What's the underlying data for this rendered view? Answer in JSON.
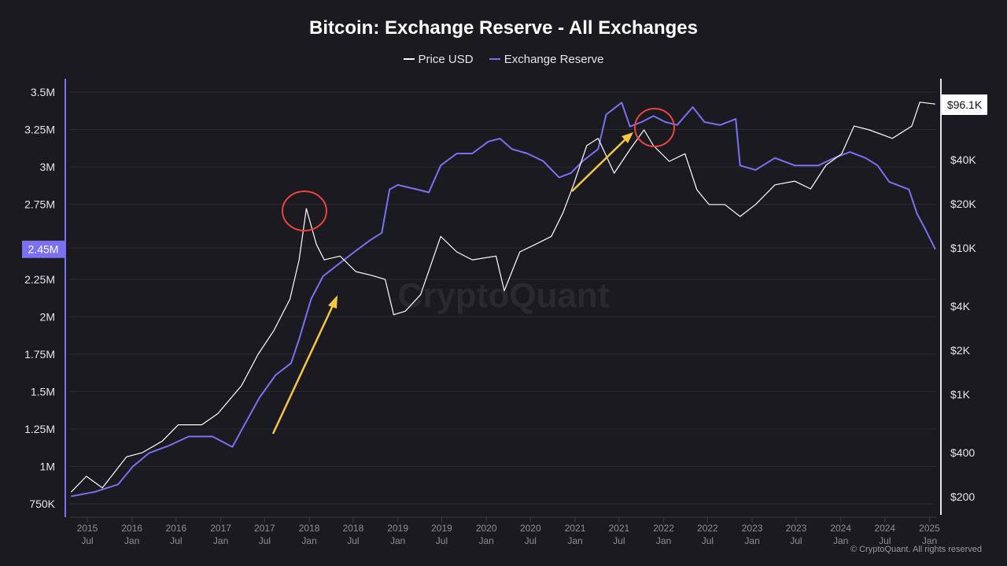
{
  "chart_data": {
    "type": "line",
    "title": "Bitcoin: Exchange Reserve - All Exchanges",
    "legend_position": "top",
    "grid": true,
    "colors": {
      "background": "#1b1a20",
      "price": "#ffffff",
      "reserve": "#7b70f2",
      "annotation_circle": "#e8463c",
      "annotation_arrow": "#f2c744"
    },
    "x_ticks": [
      {
        "year": "2015",
        "half": "Jul",
        "date": "2015-07-01"
      },
      {
        "year": "2016",
        "half": "Jan",
        "date": "2016-01-01"
      },
      {
        "year": "2016",
        "half": "Jul",
        "date": "2016-07-01"
      },
      {
        "year": "2017",
        "half": "Jan",
        "date": "2017-01-01"
      },
      {
        "year": "2017",
        "half": "Jul",
        "date": "2017-07-01"
      },
      {
        "year": "2018",
        "half": "Jan",
        "date": "2018-01-01"
      },
      {
        "year": "2018",
        "half": "Jul",
        "date": "2018-07-01"
      },
      {
        "year": "2019",
        "half": "Jan",
        "date": "2019-01-01"
      },
      {
        "year": "2019",
        "half": "Jul",
        "date": "2019-07-01"
      },
      {
        "year": "2020",
        "half": "Jan",
        "date": "2020-01-01"
      },
      {
        "year": "2020",
        "half": "Jul",
        "date": "2020-07-01"
      },
      {
        "year": "2021",
        "half": "Jan",
        "date": "2021-01-01"
      },
      {
        "year": "2021",
        "half": "Jul",
        "date": "2021-07-01"
      },
      {
        "year": "2022",
        "half": "Jan",
        "date": "2022-01-01"
      },
      {
        "year": "2022",
        "half": "Jul",
        "date": "2022-07-01"
      },
      {
        "year": "2023",
        "half": "Jan",
        "date": "2023-01-01"
      },
      {
        "year": "2023",
        "half": "Jul",
        "date": "2023-07-01"
      },
      {
        "year": "2024",
        "half": "Jan",
        "date": "2024-01-01"
      },
      {
        "year": "2024",
        "half": "Jul",
        "date": "2024-07-01"
      },
      {
        "year": "2025",
        "half": "Jan",
        "date": "2025-01-01"
      }
    ],
    "y_left": {
      "scale": "linear",
      "ticks": [
        {
          "label": "3.5M",
          "value": 3500000
        },
        {
          "label": "3.25M",
          "value": 3250000
        },
        {
          "label": "3M",
          "value": 3000000
        },
        {
          "label": "2.75M",
          "value": 2750000
        },
        {
          "label": "2.25M",
          "value": 2250000
        },
        {
          "label": "2M",
          "value": 2000000
        },
        {
          "label": "1.75M",
          "value": 1750000
        },
        {
          "label": "1.5M",
          "value": 1500000
        },
        {
          "label": "1.25M",
          "value": 1250000
        },
        {
          "label": "1M",
          "value": 1000000
        },
        {
          "label": "750K",
          "value": 750000
        }
      ],
      "current_label": "2.45M",
      "current_value": 2450000
    },
    "y_right": {
      "scale": "log",
      "ticks": [
        {
          "label": "$40K",
          "value": 40000
        },
        {
          "label": "$20K",
          "value": 20000
        },
        {
          "label": "$10K",
          "value": 10000
        },
        {
          "label": "$4K",
          "value": 4000
        },
        {
          "label": "$2K",
          "value": 2000
        },
        {
          "label": "$1K",
          "value": 1000
        },
        {
          "label": "$400",
          "value": 400
        },
        {
          "label": "$200",
          "value": 200
        }
      ],
      "current_label": "$96.1K",
      "current_value": 96100
    },
    "series": [
      {
        "name": "Price USD",
        "axis": "right",
        "x": [
          "2015-04-25",
          "2015-06-27",
          "2015-09-01",
          "2015-12-10",
          "2016-02-12",
          "2016-05-05",
          "2016-07-10",
          "2016-10-15",
          "2016-12-20",
          "2017-03-28",
          "2017-06-04",
          "2017-08-08",
          "2017-10-13",
          "2017-11-20",
          "2017-12-20",
          "2018-01-30",
          "2018-03-04",
          "2018-05-08",
          "2018-07-12",
          "2018-09-15",
          "2018-11-10",
          "2018-12-15",
          "2019-02-01",
          "2019-04-05",
          "2019-06-27",
          "2019-09-01",
          "2019-11-04",
          "2020-02-10",
          "2020-03-15",
          "2020-05-18",
          "2020-07-22",
          "2020-09-25",
          "2020-11-12",
          "2020-12-25",
          "2021-02-18",
          "2021-04-06",
          "2021-06-11",
          "2021-08-15",
          "2021-10-12",
          "2021-11-20",
          "2022-01-24",
          "2022-03-30",
          "2022-05-18",
          "2022-07-07",
          "2022-09-10",
          "2022-11-12",
          "2023-01-15",
          "2023-04-05",
          "2023-06-25",
          "2023-08-30",
          "2023-11-01",
          "2024-01-05",
          "2024-02-25",
          "2024-04-28",
          "2024-08-01",
          "2024-10-20",
          "2024-11-22",
          "2025-01-25"
        ],
        "y": [
          215,
          276,
          230,
          375,
          400,
          480,
          620,
          620,
          740,
          1150,
          1880,
          2730,
          4470,
          8300,
          18600,
          10600,
          8300,
          8800,
          6900,
          6500,
          6100,
          3500,
          3700,
          4800,
          12000,
          9400,
          8300,
          8800,
          5100,
          9400,
          10600,
          12000,
          17400,
          26900,
          50000,
          56000,
          32400,
          47000,
          64000,
          50000,
          39000,
          44000,
          25000,
          19800,
          19800,
          16400,
          19800,
          27000,
          28600,
          25300,
          36700,
          44000,
          68000,
          64000,
          56000,
          68000,
          99000,
          96100
        ]
      },
      {
        "name": "Exchange Reserve",
        "axis": "left",
        "x": [
          "2015-04-25",
          "2015-08-01",
          "2015-11-05",
          "2016-01-05",
          "2016-03-12",
          "2016-06-03",
          "2016-08-22",
          "2016-11-28",
          "2017-02-18",
          "2017-04-06",
          "2017-06-10",
          "2017-08-15",
          "2017-10-18",
          "2017-11-20",
          "2018-01-09",
          "2018-02-27",
          "2018-05-01",
          "2018-07-04",
          "2018-09-08",
          "2018-10-27",
          "2018-11-28",
          "2019-01-01",
          "2019-03-21",
          "2019-05-09",
          "2019-06-27",
          "2019-09-01",
          "2019-11-04",
          "2020-01-09",
          "2020-02-26",
          "2020-04-15",
          "2020-06-18",
          "2020-08-22",
          "2020-10-27",
          "2020-12-15",
          "2021-02-02",
          "2021-04-06",
          "2021-05-09",
          "2021-07-12",
          "2021-08-15",
          "2021-10-02",
          "2021-11-20",
          "2022-01-08",
          "2022-02-26",
          "2022-05-01",
          "2022-06-18",
          "2022-08-22",
          "2022-10-25",
          "2022-11-12",
          "2023-01-15",
          "2023-04-05",
          "2023-06-25",
          "2023-10-01",
          "2023-12-05",
          "2024-02-08",
          "2024-04-12",
          "2024-06-01",
          "2024-07-19",
          "2024-10-08",
          "2024-11-10",
          "2024-12-13",
          "2025-01-25"
        ],
        "y": [
          800000,
          830000,
          880000,
          1000000,
          1090000,
          1140000,
          1200000,
          1200000,
          1130000,
          1270000,
          1460000,
          1610000,
          1690000,
          1850000,
          2120000,
          2270000,
          2350000,
          2430000,
          2510000,
          2560000,
          2850000,
          2880000,
          2850000,
          2830000,
          3010000,
          3090000,
          3090000,
          3170000,
          3190000,
          3120000,
          3090000,
          3040000,
          2930000,
          2960000,
          3040000,
          3120000,
          3350000,
          3430000,
          3270000,
          3300000,
          3340000,
          3300000,
          3280000,
          3400000,
          3300000,
          3280000,
          3320000,
          3010000,
          2980000,
          3060000,
          3010000,
          3010000,
          3060000,
          3100000,
          3060000,
          3010000,
          2900000,
          2850000,
          2690000,
          2590000,
          2450000
        ]
      }
    ],
    "watermark": "CryptoQuant",
    "copyright": "© CryptoQuant. All rights reserved"
  }
}
